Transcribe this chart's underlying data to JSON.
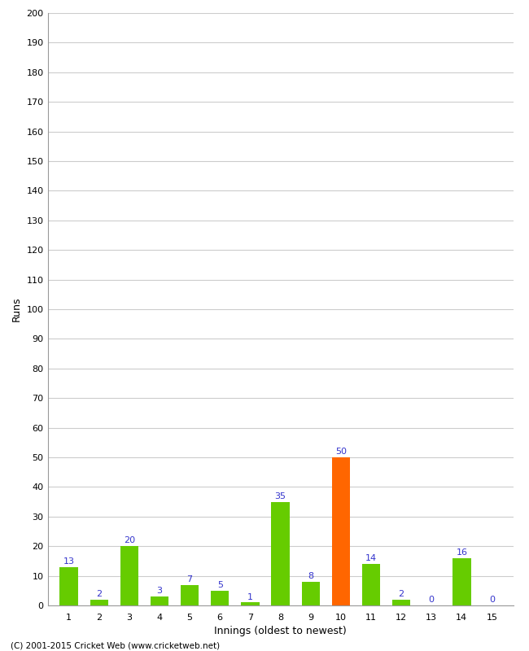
{
  "innings": [
    1,
    2,
    3,
    4,
    5,
    6,
    7,
    8,
    9,
    10,
    11,
    12,
    13,
    14,
    15
  ],
  "runs": [
    13,
    2,
    20,
    3,
    7,
    5,
    1,
    35,
    8,
    50,
    14,
    2,
    0,
    16,
    0
  ],
  "bar_colors": [
    "#66cc00",
    "#66cc00",
    "#66cc00",
    "#66cc00",
    "#66cc00",
    "#66cc00",
    "#66cc00",
    "#66cc00",
    "#66cc00",
    "#ff6600",
    "#66cc00",
    "#66cc00",
    "#66cc00",
    "#66cc00",
    "#66cc00"
  ],
  "label_color": "#3333cc",
  "ylabel": "Runs",
  "xlabel": "Innings (oldest to newest)",
  "ylim": [
    0,
    200
  ],
  "yticks": [
    0,
    10,
    20,
    30,
    40,
    50,
    60,
    70,
    80,
    90,
    100,
    110,
    120,
    130,
    140,
    150,
    160,
    170,
    180,
    190,
    200
  ],
  "background_color": "#ffffff",
  "grid_color": "#cccccc",
  "footer": "(C) 2001-2015 Cricket Web (www.cricketweb.net)",
  "bar_width": 0.6
}
